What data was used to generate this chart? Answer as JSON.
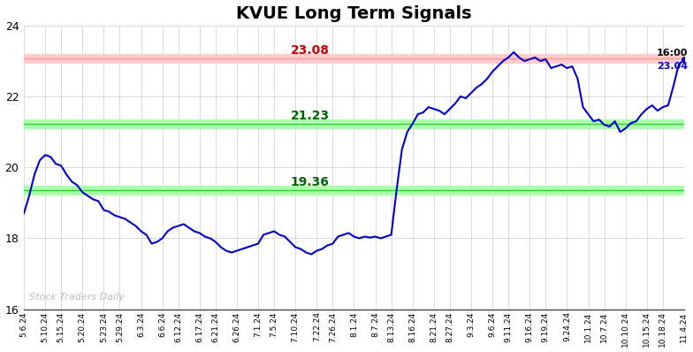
{
  "title": "KVUE Long Term Signals",
  "xlabels": [
    "5.6.24",
    "5.10.24",
    "5.15.24",
    "5.20.24",
    "5.23.24",
    "5.29.24",
    "6.3.24",
    "6.6.24",
    "6.12.24",
    "6.17.24",
    "6.21.24",
    "6.26.24",
    "7.1.24",
    "7.5.24",
    "7.10.24",
    "7.22.24",
    "7.26.24",
    "8.1.24",
    "8.7.24",
    "8.13.24",
    "8.16.24",
    "8.21.24",
    "8.27.24",
    "9.3.24",
    "9.6.24",
    "9.11.24",
    "9.16.24",
    "9.19.24",
    "9.24.24",
    "10.1.24",
    "10.7.24",
    "10.10.24",
    "10.15.24",
    "10.18.24",
    "11.4.24"
  ],
  "price_data": [
    18.7,
    19.2,
    19.8,
    20.2,
    20.35,
    20.3,
    20.1,
    20.05,
    19.8,
    19.6,
    19.5,
    19.3,
    19.2,
    19.1,
    19.05,
    18.8,
    18.75,
    18.65,
    18.6,
    18.55,
    18.45,
    18.35,
    18.2,
    18.1,
    17.85,
    17.9,
    18.0,
    18.2,
    18.3,
    18.35,
    18.4,
    18.3,
    18.2,
    18.15,
    18.05,
    18.0,
    17.9,
    17.75,
    17.65,
    17.6,
    17.65,
    17.7,
    17.75,
    17.8,
    17.85,
    18.1,
    18.15,
    18.2,
    18.1,
    18.05,
    17.9,
    17.75,
    17.7,
    17.6,
    17.55,
    17.65,
    17.7,
    17.8,
    17.85,
    18.05,
    18.1,
    18.15,
    18.05,
    18.0,
    18.05,
    18.02,
    18.05,
    18.0,
    18.05,
    18.1,
    19.36,
    20.5,
    21.0,
    21.23,
    21.5,
    21.55,
    21.7,
    21.65,
    21.6,
    21.5,
    21.65,
    21.8,
    22.0,
    21.95,
    22.1,
    22.25,
    22.35,
    22.5,
    22.7,
    22.85,
    23.0,
    23.1,
    23.25,
    23.1,
    23.0,
    23.05,
    23.1,
    23.0,
    23.05,
    22.8,
    22.85,
    22.9,
    22.8,
    22.85,
    22.5,
    21.7,
    21.5,
    21.3,
    21.35,
    21.2,
    21.15,
    21.3,
    21.0,
    21.1,
    21.25,
    21.3,
    21.5,
    21.65,
    21.75,
    21.6,
    21.7,
    21.75,
    22.3,
    22.9,
    23.04
  ],
  "line_color": "#0000cc",
  "hline_red": 23.08,
  "hline_red_fill_color": "#ffcccc",
  "hline_red_line_color": "#ff9999",
  "hline_red_label_color": "#cc0000",
  "hline_green1": 21.23,
  "hline_green2": 19.36,
  "hline_green_fill_color": "#aaffaa",
  "hline_green_line_color": "#33cc33",
  "hline_green_label_color": "#006600",
  "annotation_red_text": "23.08",
  "annotation_green1_text": "21.23",
  "annotation_green2_text": "19.36",
  "annotation_time": "16:00",
  "annotation_price": "23.04",
  "annotation_price_color": "#0000cc",
  "watermark": "Stock Traders Daily",
  "watermark_color": "#bbbbbb",
  "ylim": [
    16,
    24
  ],
  "yticks": [
    16,
    18,
    20,
    22,
    24
  ],
  "bg_color": "#ffffff",
  "grid_color": "#cccccc",
  "title_fontsize": 14,
  "figsize": [
    7.84,
    3.98
  ],
  "dpi": 100
}
